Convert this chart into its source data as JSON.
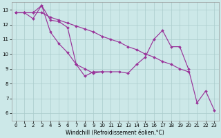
{
  "background_color": "#cce8e8",
  "grid_color": "#aacccc",
  "line_color": "#993399",
  "xlim": [
    -0.5,
    23.5
  ],
  "ylim": [
    5.5,
    13.5
  ],
  "xticks": [
    0,
    1,
    2,
    3,
    4,
    5,
    6,
    7,
    8,
    9,
    10,
    11,
    12,
    13,
    14,
    15,
    16,
    17,
    18,
    19,
    20,
    21,
    22,
    23
  ],
  "yticks": [
    6,
    7,
    8,
    9,
    10,
    11,
    12,
    13
  ],
  "xlabel": "Windchill (Refroidissement éolien,°C)",
  "line1_x": [
    0,
    1,
    2,
    3,
    4,
    5,
    6,
    7,
    8,
    9,
    10,
    11,
    12,
    13,
    14,
    15,
    16,
    17,
    18,
    19,
    20,
    21,
    22,
    23
  ],
  "line1_y": [
    12.8,
    12.8,
    12.8,
    13.3,
    12.3,
    12.2,
    11.8,
    9.3,
    9.0,
    8.7,
    8.8,
    8.8,
    8.8,
    8.7,
    9.3,
    9.8,
    11.0,
    11.6,
    10.5,
    10.5,
    9.0,
    6.7,
    7.5,
    6.2
  ],
  "line2_x": [
    0,
    1,
    2,
    3,
    4,
    5,
    6,
    7,
    8,
    9,
    10
  ],
  "line2_y": [
    12.8,
    12.8,
    12.4,
    13.3,
    11.5,
    10.7,
    10.1,
    9.3,
    8.5,
    8.8,
    8.8
  ],
  "line3_x": [
    0,
    1,
    2,
    3,
    4,
    5,
    6,
    7,
    8,
    9,
    10,
    11,
    12,
    13,
    14,
    15,
    16,
    17,
    18,
    19,
    20
  ],
  "line3_y": [
    12.8,
    12.8,
    12.8,
    12.8,
    12.5,
    12.3,
    12.1,
    11.9,
    11.7,
    11.5,
    11.2,
    11.0,
    10.8,
    10.5,
    10.3,
    10.0,
    9.8,
    9.5,
    9.3,
    9.0,
    8.8
  ]
}
